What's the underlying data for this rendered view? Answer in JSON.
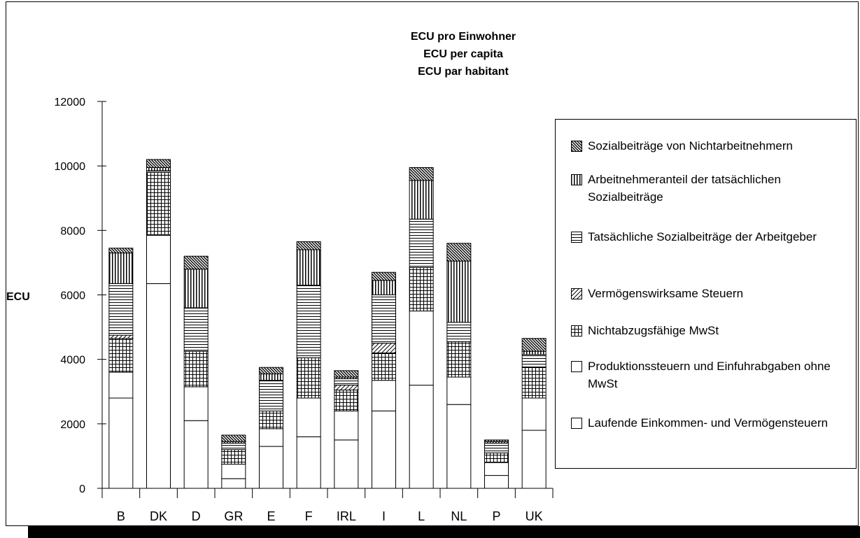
{
  "chart_data": {
    "type": "bar",
    "stacked": true,
    "title_lines": [
      "ECU pro Einwohner",
      "ECU per capita",
      "ECU par habitant"
    ],
    "ylabel": "ECU",
    "xlabel": "",
    "ylim": [
      0,
      12000
    ],
    "yticks": [
      0,
      2000,
      4000,
      6000,
      8000,
      10000,
      12000
    ],
    "grid": false,
    "legend_position": "right",
    "categories": [
      "B",
      "DK",
      "D",
      "GR",
      "E",
      "F",
      "IRL",
      "I",
      "L",
      "NL",
      "P",
      "UK"
    ],
    "series": [
      {
        "name": "Laufende Einkommen- und Vermögensteuern",
        "pattern": "blank",
        "values": [
          2800,
          6350,
          2100,
          300,
          1300,
          1600,
          1500,
          2400,
          3200,
          2600,
          400,
          1800
        ]
      },
      {
        "name": "Produktionssteuern und Einfuhrabgaben ohne MwSt",
        "pattern": "blank",
        "values": [
          800,
          1500,
          1050,
          450,
          550,
          1200,
          900,
          950,
          2300,
          850,
          400,
          1000
        ]
      },
      {
        "name": "Nichtabzugsfähige MwSt",
        "pattern": "grid",
        "values": [
          1050,
          1950,
          1100,
          450,
          550,
          1250,
          650,
          850,
          1350,
          1100,
          300,
          950
        ]
      },
      {
        "name": "Vermögenswirksame Steuern",
        "pattern": "diagonal",
        "values": [
          100,
          0,
          0,
          0,
          0,
          0,
          150,
          300,
          0,
          0,
          0,
          0
        ]
      },
      {
        "name": "Tatsächliche Sozialbeiträge der Arbeitgeber",
        "pattern": "horizontal",
        "values": [
          1600,
          50,
          1350,
          200,
          950,
          2250,
          200,
          1500,
          1500,
          600,
          300,
          400
        ]
      },
      {
        "name": "Arbeitnehmeranteil der tatsächlichen Sozialbeiträge",
        "pattern": "vertical",
        "values": [
          950,
          100,
          1200,
          50,
          200,
          1100,
          50,
          450,
          1200,
          1900,
          50,
          100
        ]
      },
      {
        "name": "Sozialbeiträge von Nichtarbeitnehmern",
        "pattern": "back-diagonal",
        "values": [
          150,
          250,
          400,
          200,
          200,
          250,
          200,
          250,
          400,
          550,
          50,
          400
        ]
      }
    ],
    "legend_order": [
      "Sozialbeiträge von Nichtarbeitnehmern",
      "Arbeitnehmeranteil der tatsächlichen Sozialbeiträge",
      "Tatsächliche Sozialbeiträge der Arbeitgeber",
      "Vermögenswirksame Steuern",
      "Nichtabzugsfähige MwSt",
      "Produktionssteuern und Einfuhrabgaben ohne MwSt",
      "Laufende Einkommen- und Vermögensteuern"
    ]
  }
}
